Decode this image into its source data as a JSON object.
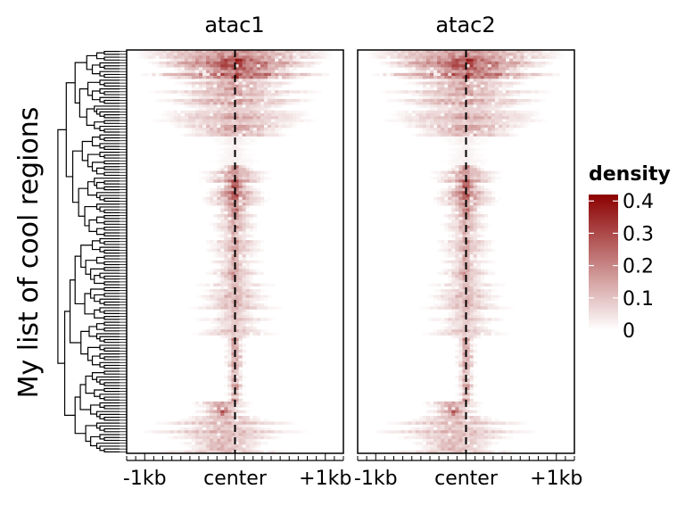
{
  "chart_data": {
    "type": "heatmap",
    "title": "",
    "ylabel": "My list of cool regions",
    "panels": [
      {
        "name": "atac1"
      },
      {
        "name": "atac2"
      }
    ],
    "x_ticks": [
      "-1kb",
      "center",
      "+1kb"
    ],
    "x_range_bp": [
      -1200,
      1200
    ],
    "n_regions": 140,
    "legend": {
      "title": "density",
      "ticks": [
        "0.4",
        "0.3",
        "0.2",
        "0.1",
        "0"
      ],
      "range": [
        0,
        0.42
      ],
      "color_low": "#ffffff",
      "color_high": "#8b0000",
      "placement": "right"
    },
    "center_line": "dashed",
    "row_clusters": [
      {
        "rows": 10,
        "profile": "wide-sharp",
        "peak": 0.35
      },
      {
        "rows": 20,
        "profile": "broad",
        "peak": 0.16
      },
      {
        "rows": 10,
        "profile": "weak",
        "peak": 0.04
      },
      {
        "rows": 18,
        "profile": "strong-mid",
        "peak": 0.38
      },
      {
        "rows": 22,
        "profile": "mid",
        "peak": 0.22
      },
      {
        "rows": 20,
        "profile": "broad-mid",
        "peak": 0.15
      },
      {
        "rows": 22,
        "profile": "narrow-strong",
        "peak": 0.4
      },
      {
        "rows": 5,
        "profile": "strong-left",
        "peak": 0.38
      },
      {
        "rows": 13,
        "profile": "broad-left",
        "peak": 0.15
      }
    ]
  }
}
